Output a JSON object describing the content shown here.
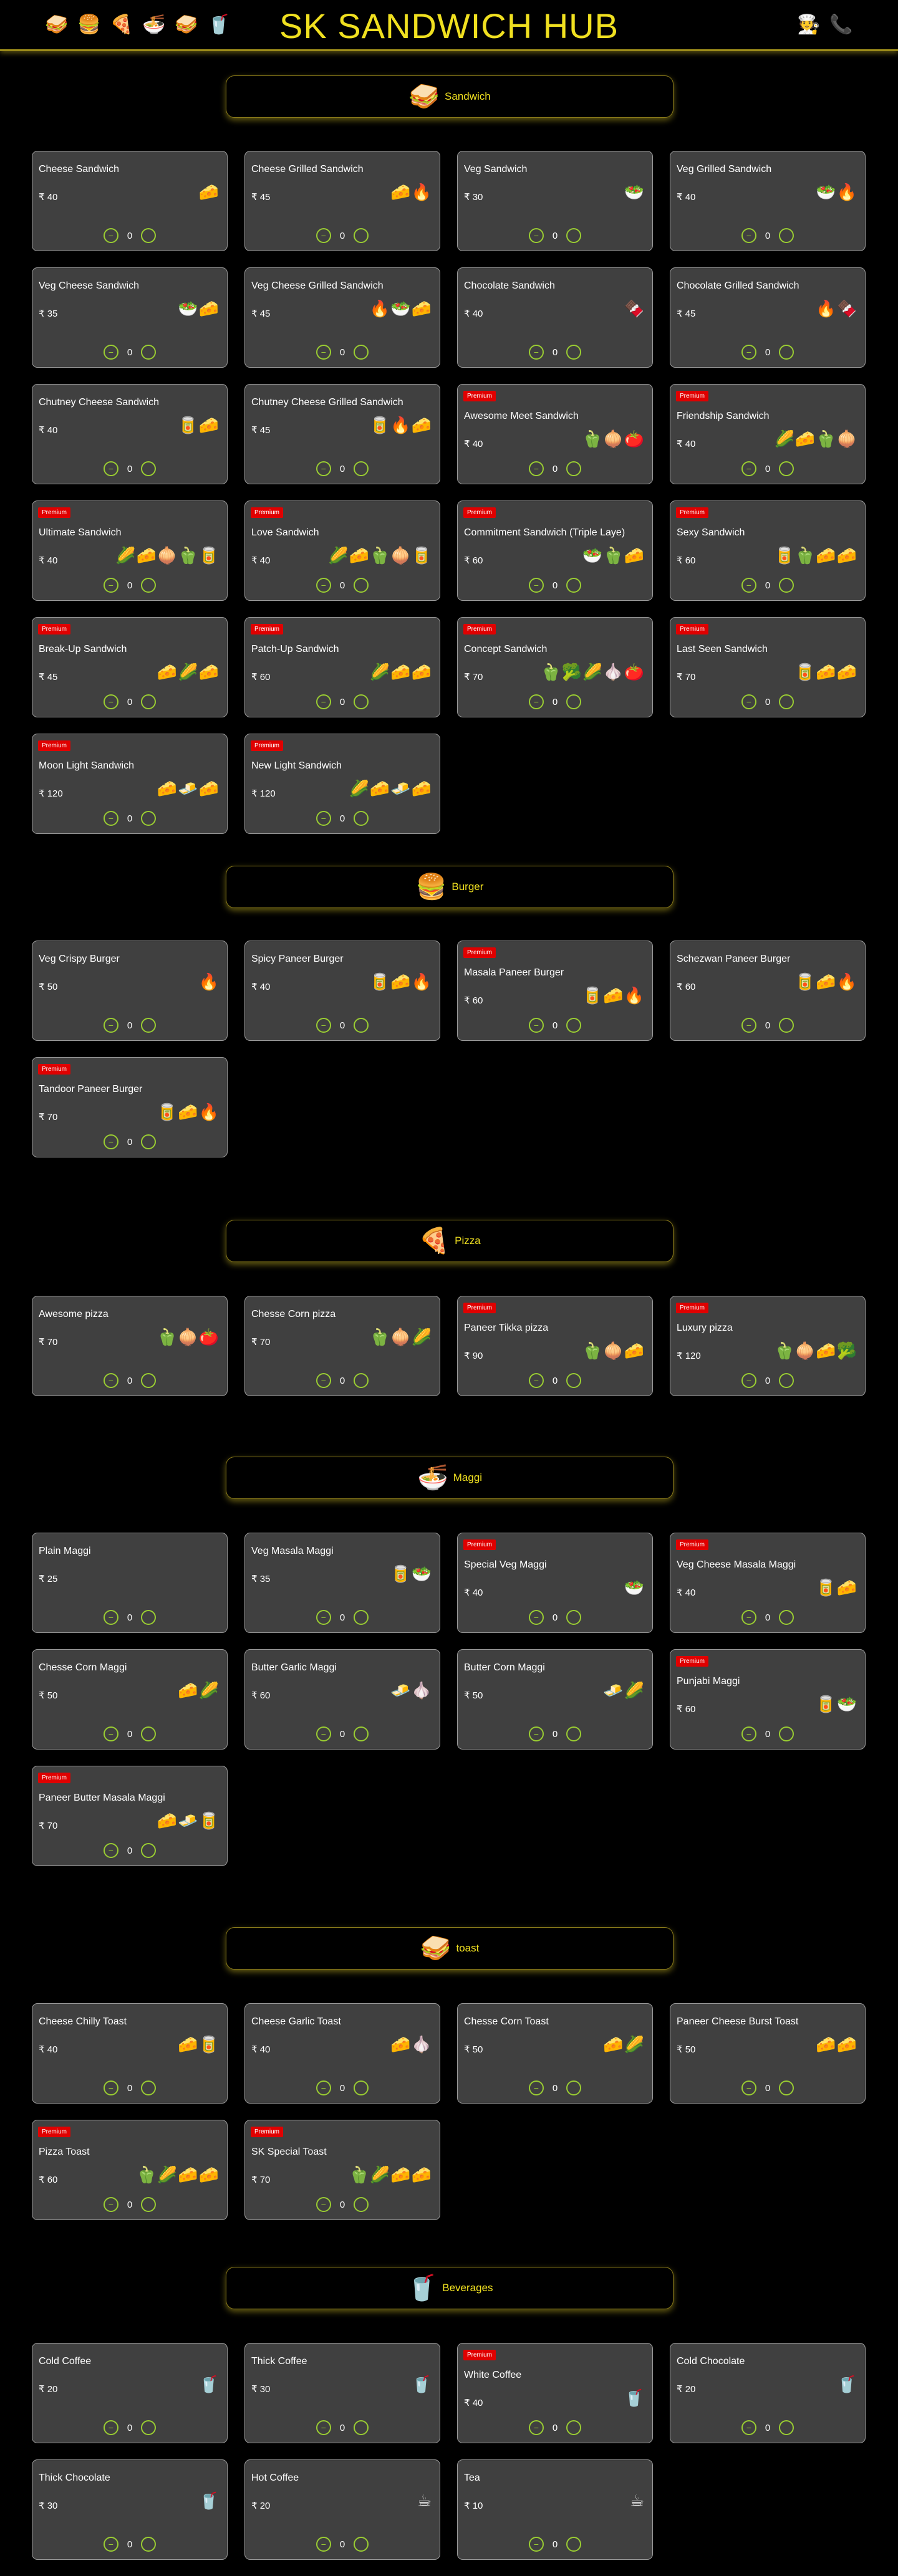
{
  "header": {
    "title": "SK SANDWICH HUB",
    "left_icons": [
      {
        "glyph": "🥪",
        "name": "sandwich-nav-icon"
      },
      {
        "glyph": "🍔",
        "name": "burger-nav-icon"
      },
      {
        "glyph": "🍕",
        "name": "pizza-nav-icon"
      },
      {
        "glyph": "🍜",
        "name": "maggi-nav-icon"
      },
      {
        "glyph": "🥪",
        "name": "toast-nav-icon"
      },
      {
        "glyph": "🥤",
        "name": "beverages-nav-icon"
      }
    ],
    "right_icons": [
      {
        "glyph": "🧑‍🍳",
        "name": "chef-icon"
      },
      {
        "glyph": "📞",
        "name": "phone-icon"
      }
    ]
  },
  "qty_default": "0",
  "qty_minus": "−",
  "premium_label": "Premium",
  "categories": [
    {
      "name": "Sandwich",
      "icon": "🥪",
      "items": [
        {
          "name": "Cheese Sandwich",
          "price": "₹ 40",
          "premium": false,
          "ings": "🧀"
        },
        {
          "name": "Cheese Grilled Sandwich",
          "price": "₹ 45",
          "premium": false,
          "ings": "🧀🔥"
        },
        {
          "name": "Veg Sandwich",
          "price": "₹ 30",
          "premium": false,
          "ings": "🥗"
        },
        {
          "name": "Veg Grilled Sandwich",
          "price": "₹ 40",
          "premium": false,
          "ings": "🥗🔥"
        },
        {
          "name": "Veg Cheese Sandwich",
          "price": "₹ 35",
          "premium": false,
          "ings": "🥗🧀"
        },
        {
          "name": "Veg Cheese Grilled Sandwich",
          "price": "₹ 45",
          "premium": false,
          "ings": "🔥🥗🧀"
        },
        {
          "name": "Chocolate Sandwich",
          "price": "₹ 40",
          "premium": false,
          "ings": "🍫"
        },
        {
          "name": "Chocolate Grilled Sandwich",
          "price": "₹ 45",
          "premium": false,
          "ings": "🔥🍫"
        },
        {
          "name": "Chutney Cheese Sandwich",
          "price": "₹ 40",
          "premium": false,
          "ings": "🥫🧀"
        },
        {
          "name": "Chutney Cheese Grilled Sandwich",
          "price": "₹ 45",
          "premium": false,
          "ings": "🥫🔥🧀"
        },
        {
          "name": "Awesome Meet Sandwich",
          "price": "₹ 40",
          "premium": true,
          "ings": "🫑🧅🍅"
        },
        {
          "name": "Friendship Sandwich",
          "price": "₹ 40",
          "premium": true,
          "ings": "🌽🧀🫑🧅"
        },
        {
          "name": "Ultimate Sandwich",
          "price": "₹ 40",
          "premium": true,
          "ings": "🌽🧀🧅🫑🥫"
        },
        {
          "name": "Love Sandwich",
          "price": "₹ 40",
          "premium": true,
          "ings": "🌽🧀🫑🧅🥫"
        },
        {
          "name": "Commitment Sandwich (Triple Laye)",
          "price": "₹ 60",
          "premium": true,
          "ings": "🥗🫑🧀"
        },
        {
          "name": "Sexy Sandwich",
          "price": "₹ 60",
          "premium": true,
          "ings": "🥫🫑🧀🧀"
        },
        {
          "name": "Break-Up Sandwich",
          "price": "₹ 45",
          "premium": true,
          "ings": "🧀🌽🧀"
        },
        {
          "name": "Patch-Up Sandwich",
          "price": "₹ 60",
          "premium": true,
          "ings": "🌽🧀🧀"
        },
        {
          "name": "Concept Sandwich",
          "price": "₹ 70",
          "premium": true,
          "ings": "🫑🥦🌽🧄🍅"
        },
        {
          "name": "Last Seen Sandwich",
          "price": "₹ 70",
          "premium": true,
          "ings": "🥫🧀🧀"
        },
        {
          "name": "Moon Light Sandwich",
          "price": "₹ 120",
          "premium": true,
          "ings": "🧀🧈🧀"
        },
        {
          "name": "New Light Sandwich",
          "price": "₹ 120",
          "premium": true,
          "ings": "🌽🧀🧈🧀"
        }
      ]
    },
    {
      "name": "Burger",
      "icon": "🍔",
      "items": [
        {
          "name": "Veg Crispy Burger",
          "price": "₹ 50",
          "premium": false,
          "ings": "🔥"
        },
        {
          "name": "Spicy Paneer Burger",
          "price": "₹ 40",
          "premium": false,
          "ings": "🥫🧀🔥"
        },
        {
          "name": "Masala Paneer Burger",
          "price": "₹ 60",
          "premium": true,
          "ings": "🥫🧀🔥"
        },
        {
          "name": "Schezwan Paneer Burger",
          "price": "₹ 60",
          "premium": false,
          "ings": "🥫🧀🔥"
        },
        {
          "name": "Tandoor Paneer Burger",
          "price": "₹ 70",
          "premium": true,
          "ings": "🥫🧀🔥"
        }
      ]
    },
    {
      "name": "Pizza",
      "icon": "🍕",
      "items": [
        {
          "name": "Awesome pizza",
          "price": "₹ 70",
          "premium": false,
          "ings": "🫑🧅🍅"
        },
        {
          "name": "Chesse Corn pizza",
          "price": "₹ 70",
          "premium": false,
          "ings": "🫑🧅🌽"
        },
        {
          "name": "Paneer Tikka pizza",
          "price": "₹ 90",
          "premium": true,
          "ings": "🫑🧅🧀"
        },
        {
          "name": "Luxury pizza",
          "price": "₹ 120",
          "premium": true,
          "ings": "🫑🧅🧀🥦"
        }
      ]
    },
    {
      "name": "Maggi",
      "icon": "🍜",
      "items": [
        {
          "name": "Plain Maggi",
          "price": "₹ 25",
          "premium": false,
          "ings": ""
        },
        {
          "name": "Veg Masala Maggi",
          "price": "₹ 35",
          "premium": false,
          "ings": "🥫🥗"
        },
        {
          "name": "Special Veg Maggi",
          "price": "₹ 40",
          "premium": true,
          "ings": "🥗"
        },
        {
          "name": "Veg Cheese Masala Maggi",
          "price": "₹ 40",
          "premium": true,
          "ings": "🥫🧀"
        },
        {
          "name": "Chesse Corn Maggi",
          "price": "₹ 50",
          "premium": false,
          "ings": "🧀🌽"
        },
        {
          "name": "Butter Garlic Maggi",
          "price": "₹ 60",
          "premium": false,
          "ings": "🧈🧄"
        },
        {
          "name": "Butter Corn Maggi",
          "price": "₹ 50",
          "premium": false,
          "ings": "🧈🌽"
        },
        {
          "name": "Punjabi Maggi",
          "price": "₹ 60",
          "premium": true,
          "ings": "🥫🥗"
        },
        {
          "name": "Paneer Butter Masala Maggi",
          "price": "₹ 70",
          "premium": true,
          "ings": "🧀🧈🥫"
        }
      ]
    },
    {
      "name": "toast",
      "icon": "🥪",
      "items": [
        {
          "name": "Cheese Chilly Toast",
          "price": "₹ 40",
          "premium": false,
          "ings": "🧀🥫"
        },
        {
          "name": "Cheese Garlic Toast",
          "price": "₹ 40",
          "premium": false,
          "ings": "🧀🧄"
        },
        {
          "name": "Chesse Corn Toast",
          "price": "₹ 50",
          "premium": false,
          "ings": "🧀🌽"
        },
        {
          "name": "Paneer Cheese Burst Toast",
          "price": "₹ 50",
          "premium": false,
          "ings": "🧀🧀"
        },
        {
          "name": "Pizza Toast",
          "price": "₹ 60",
          "premium": true,
          "ings": "🫑🌽🧀🧀"
        },
        {
          "name": "SK Special Toast",
          "price": "₹ 70",
          "premium": true,
          "ings": "🫑🌽🧀🧀"
        }
      ]
    },
    {
      "name": "Beverages",
      "icon": "🥤",
      "items": [
        {
          "name": "Cold Coffee",
          "price": "₹ 20",
          "premium": false,
          "ings": "🥤"
        },
        {
          "name": "Thick Coffee",
          "price": "₹ 30",
          "premium": false,
          "ings": "🥤"
        },
        {
          "name": "White Coffee",
          "price": "₹ 40",
          "premium": true,
          "ings": "🥤"
        },
        {
          "name": "Cold Chocolate",
          "price": "₹ 20",
          "premium": false,
          "ings": "🥤"
        },
        {
          "name": "Thick Chocolate",
          "price": "₹ 30",
          "premium": false,
          "ings": "🥤"
        },
        {
          "name": "Hot Coffee",
          "price": "₹ 20",
          "premium": false,
          "ings": "☕"
        },
        {
          "name": "Tea",
          "price": "₹ 10",
          "premium": false,
          "ings": "☕"
        }
      ]
    }
  ]
}
